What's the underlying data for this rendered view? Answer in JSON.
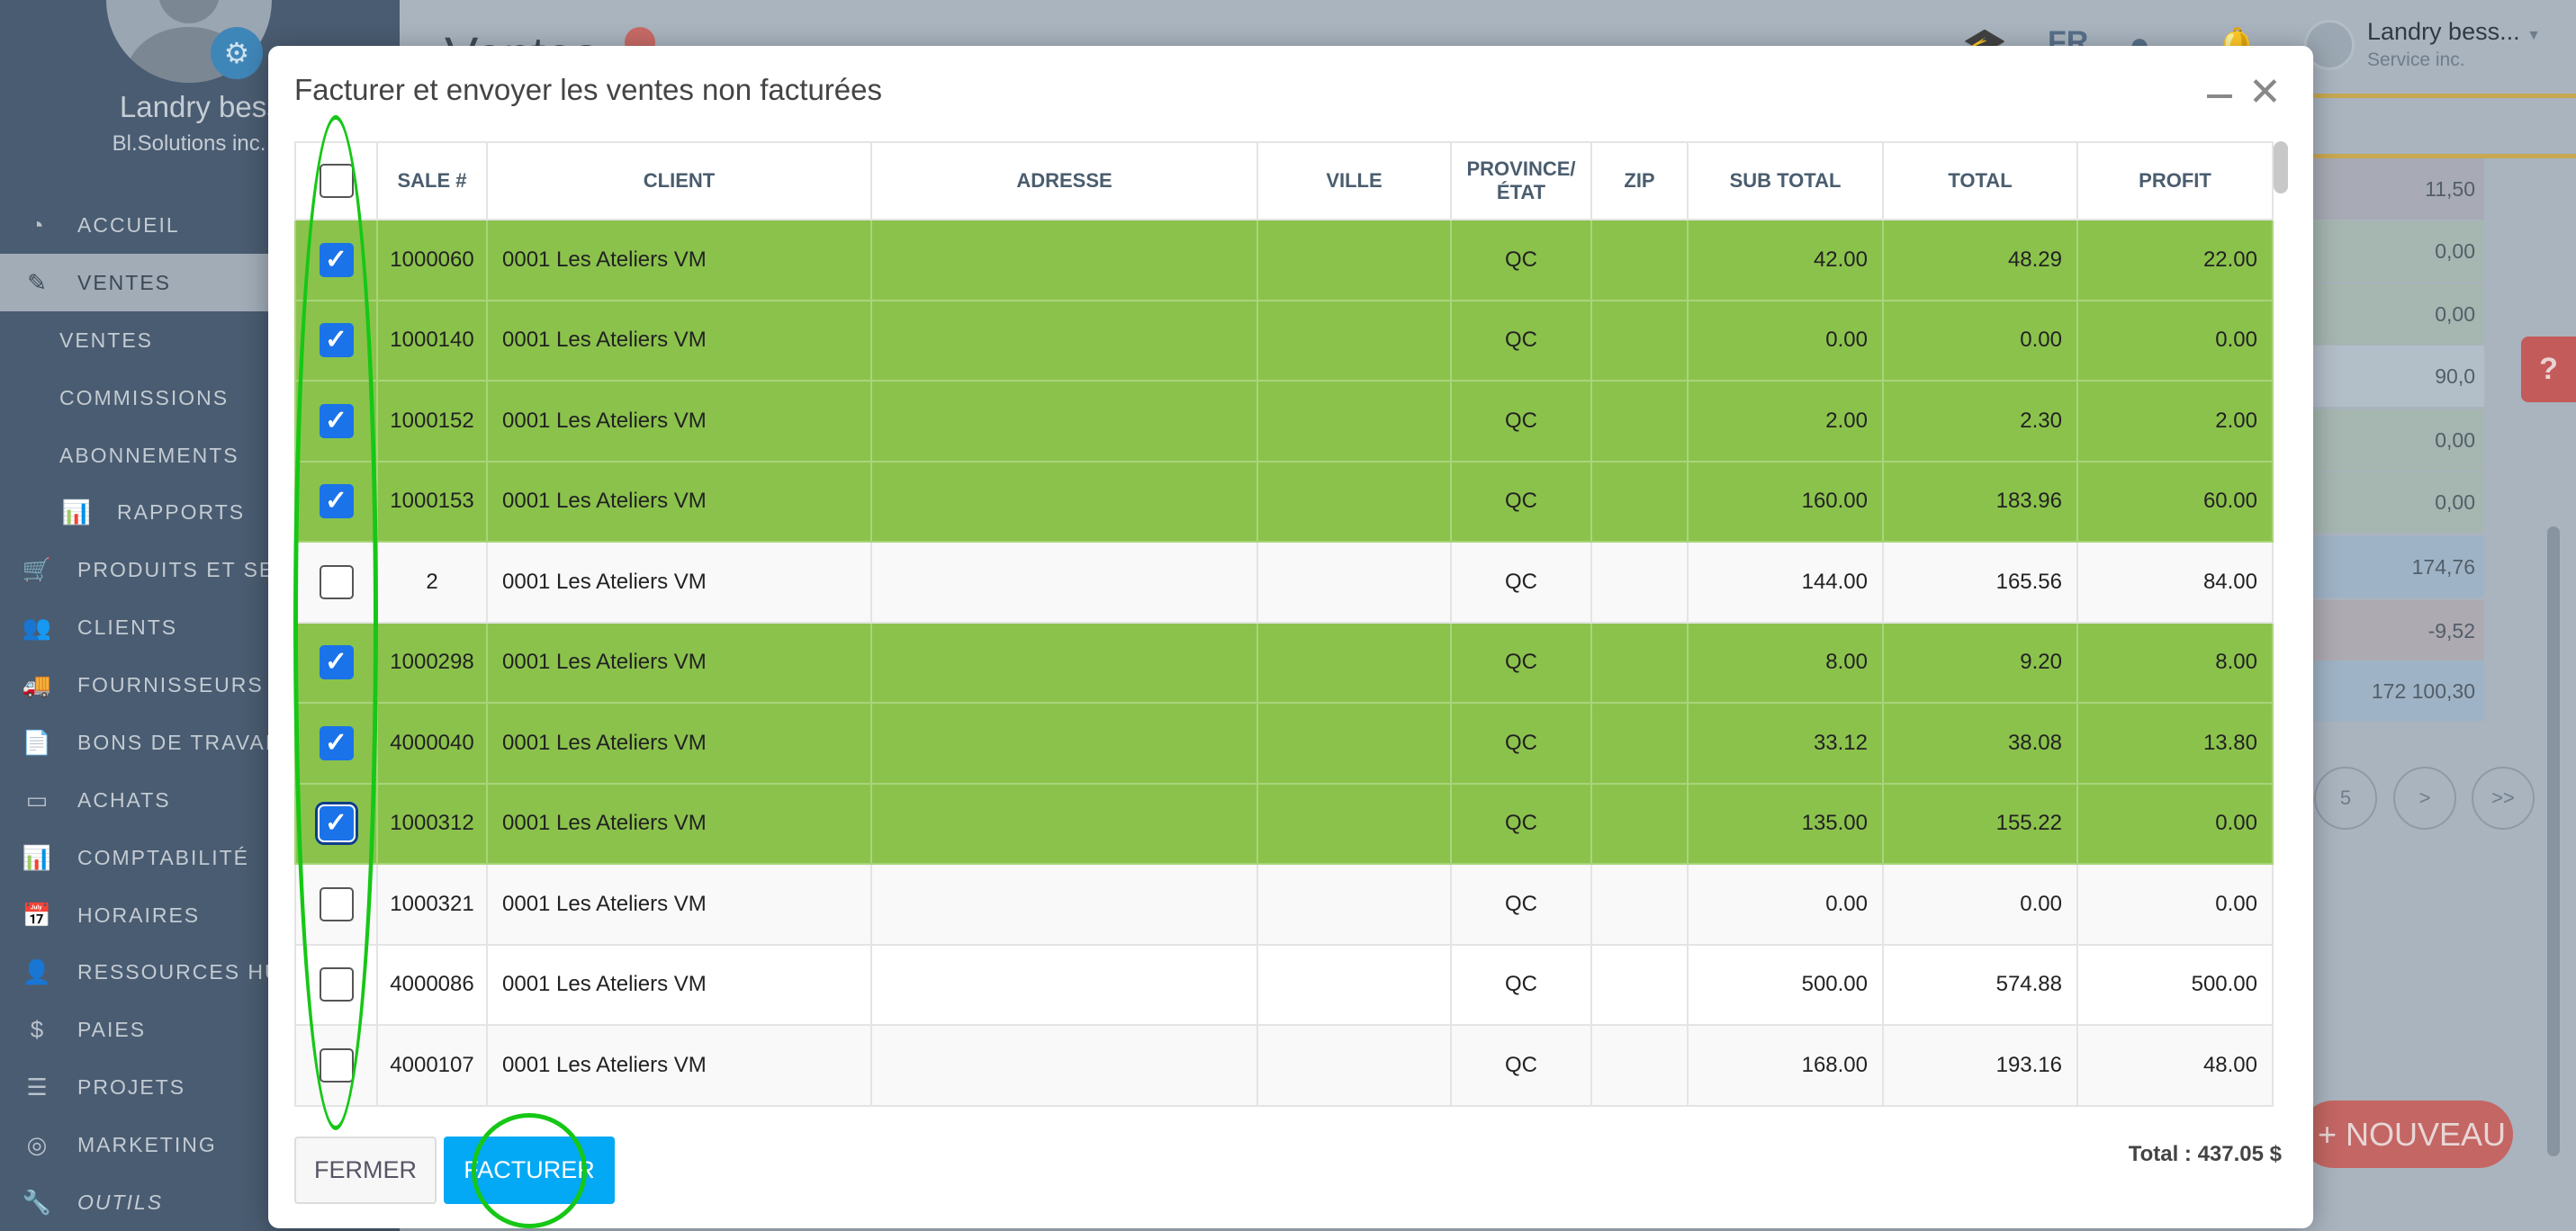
{
  "sidebar": {
    "user_name": "Landry bessa",
    "company": "Bl.Solutions inc.",
    "items": [
      {
        "label": "ACCUEIL",
        "icon": "dashboard-icon",
        "glyph": "◔"
      },
      {
        "label": "VENTES",
        "icon": "edit-icon",
        "glyph": "✎",
        "active": true
      },
      {
        "label": "VENTES",
        "sub": true
      },
      {
        "label": "COMMISSIONS",
        "sub": true
      },
      {
        "label": "ABONNEMENTS",
        "sub": true
      },
      {
        "label": "RAPPORTS",
        "sub": true,
        "icon": "bar-chart-icon",
        "glyph": "📊"
      },
      {
        "label": "PRODUITS ET SERVICES",
        "icon": "cart-icon",
        "glyph": "🛒"
      },
      {
        "label": "CLIENTS",
        "icon": "users-icon",
        "glyph": "👥"
      },
      {
        "label": "FOURNISSEURS",
        "icon": "truck-icon",
        "glyph": "🚚"
      },
      {
        "label": "BONS DE TRAVAIL",
        "icon": "file-icon",
        "glyph": "📄"
      },
      {
        "label": "ACHATS",
        "icon": "credit-card-icon",
        "glyph": "▭"
      },
      {
        "label": "COMPTABILITÉ",
        "icon": "bar-chart-icon",
        "glyph": "📊"
      },
      {
        "label": "HORAIRES",
        "icon": "calendar-icon",
        "glyph": "📅"
      },
      {
        "label": "RESSOURCES HUMAINES",
        "icon": "user-icon",
        "glyph": "👤"
      },
      {
        "label": "PAIES",
        "icon": "dollar-icon",
        "glyph": "$"
      },
      {
        "label": "PROJETS",
        "icon": "tasks-icon",
        "glyph": "☰"
      },
      {
        "label": "MARKETING",
        "icon": "bullseye-icon",
        "glyph": "◎"
      },
      {
        "label": "OUTILS",
        "icon": "wrench-icon",
        "glyph": "🔧"
      }
    ]
  },
  "topbar": {
    "title": "Ventes",
    "lang": "FR",
    "user_name": "Landry bess...",
    "user_company": "Service inc."
  },
  "background": {
    "values": [
      "11,50",
      "0,00",
      "0,00",
      "90,0",
      "0,00",
      "0,00",
      "174,76",
      "-9,52",
      "172 100,30"
    ],
    "pagination": [
      "5",
      ">",
      ">>"
    ],
    "new_button": "+ NOUVEAU",
    "help": "?"
  },
  "modal": {
    "title": "Facturer et envoyer les ventes non facturées",
    "columns": [
      "",
      "SALE #",
      "CLIENT",
      "ADRESSE",
      "VILLE",
      "PROVINCE/ ÉTAT",
      "ZIP",
      "SUB TOTAL",
      "TOTAL",
      "PROFIT"
    ],
    "rows": [
      {
        "checked": true,
        "sale": "1000060",
        "client": "0001 Les Ateliers VM",
        "adresse": "",
        "ville": "",
        "province": "QC",
        "zip": "",
        "subtotal": "42.00",
        "total": "48.29",
        "profit": "22.00"
      },
      {
        "checked": true,
        "sale": "1000140",
        "client": "0001 Les Ateliers VM",
        "adresse": "",
        "ville": "",
        "province": "QC",
        "zip": "",
        "subtotal": "0.00",
        "total": "0.00",
        "profit": "0.00"
      },
      {
        "checked": true,
        "sale": "1000152",
        "client": "0001 Les Ateliers VM",
        "adresse": "",
        "ville": "",
        "province": "QC",
        "zip": "",
        "subtotal": "2.00",
        "total": "2.30",
        "profit": "2.00"
      },
      {
        "checked": true,
        "sale": "1000153",
        "client": "0001 Les Ateliers VM",
        "adresse": "",
        "ville": "",
        "province": "QC",
        "zip": "",
        "subtotal": "160.00",
        "total": "183.96",
        "profit": "60.00"
      },
      {
        "checked": false,
        "sale": "2",
        "client": "0001 Les Ateliers VM",
        "adresse": "",
        "ville": "",
        "province": "QC",
        "zip": "",
        "subtotal": "144.00",
        "total": "165.56",
        "profit": "84.00"
      },
      {
        "checked": true,
        "sale": "1000298",
        "client": "0001 Les Ateliers VM",
        "adresse": "",
        "ville": "",
        "province": "QC",
        "zip": "",
        "subtotal": "8.00",
        "total": "9.20",
        "profit": "8.00"
      },
      {
        "checked": true,
        "sale": "4000040",
        "client": "0001 Les Ateliers VM",
        "adresse": "",
        "ville": "",
        "province": "QC",
        "zip": "",
        "subtotal": "33.12",
        "total": "38.08",
        "profit": "13.80"
      },
      {
        "checked": true,
        "focused": true,
        "sale": "1000312",
        "client": "0001 Les Ateliers VM",
        "adresse": "",
        "ville": "",
        "province": "QC",
        "zip": "",
        "subtotal": "135.00",
        "total": "155.22",
        "profit": "0.00"
      },
      {
        "checked": false,
        "sale": "1000321",
        "client": "0001 Les Ateliers VM",
        "adresse": "",
        "ville": "",
        "province": "QC",
        "zip": "",
        "subtotal": "0.00",
        "total": "0.00",
        "profit": "0.00"
      },
      {
        "checked": false,
        "sale": "4000086",
        "client": "0001 Les Ateliers VM",
        "adresse": "",
        "ville": "",
        "province": "QC",
        "zip": "",
        "subtotal": "500.00",
        "total": "574.88",
        "profit": "500.00"
      },
      {
        "checked": false,
        "sale": "4000107",
        "client": "0001 Les Ateliers VM",
        "adresse": "",
        "ville": "",
        "province": "QC",
        "zip": "",
        "subtotal": "168.00",
        "total": "193.16",
        "profit": "48.00"
      }
    ],
    "close_label": "FERMER",
    "invoice_label": "FACTURER",
    "total_text": "Total : 437.05 $"
  }
}
